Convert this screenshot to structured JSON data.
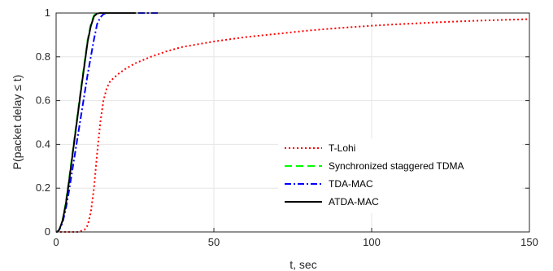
{
  "chart_data": {
    "type": "line",
    "title": "",
    "xlabel": "t, sec",
    "ylabel": "P(packet delay   ≤ t)",
    "xlim": [
      0,
      150
    ],
    "ylim": [
      0,
      1
    ],
    "xticks": [
      0,
      50,
      100,
      150
    ],
    "yticks": [
      0,
      0.2,
      0.4,
      0.6,
      0.8,
      1
    ],
    "xtick_labels": [
      "0",
      "50",
      "100",
      "150"
    ],
    "ytick_labels": [
      "0",
      "0.2",
      "0.4",
      "0.6",
      "0.8",
      "1"
    ],
    "grid": true,
    "legend_position": "lower-right",
    "series": [
      {
        "name": "T-Lohi",
        "color": "#ff0000",
        "dash": "dotted",
        "x": [
          0,
          7,
          9,
          10,
          11,
          12,
          13,
          14,
          15,
          16,
          17,
          18,
          20,
          22,
          25,
          30,
          35,
          40,
          50,
          60,
          70,
          80,
          90,
          100,
          110,
          120,
          130,
          140,
          150
        ],
        "y": [
          0,
          0,
          0.01,
          0.03,
          0.09,
          0.2,
          0.36,
          0.5,
          0.6,
          0.655,
          0.685,
          0.7,
          0.725,
          0.745,
          0.77,
          0.8,
          0.825,
          0.845,
          0.87,
          0.89,
          0.905,
          0.92,
          0.932,
          0.942,
          0.95,
          0.957,
          0.963,
          0.968,
          0.972
        ]
      },
      {
        "name": "Synchronized staggered TDMA",
        "color": "#00ff00",
        "dash": "dashed",
        "x": [
          0,
          0.5,
          1,
          2,
          3,
          4,
          6,
          8,
          10,
          11,
          12,
          13,
          14,
          25
        ],
        "y": [
          0,
          0.002,
          0.01,
          0.05,
          0.13,
          0.23,
          0.45,
          0.67,
          0.88,
          0.95,
          0.99,
          1,
          1,
          1
        ]
      },
      {
        "name": "TDA-MAC",
        "color": "#0000ff",
        "dash": "dashdot",
        "x": [
          0,
          0.5,
          1,
          2,
          3,
          4,
          6,
          8,
          10,
          12,
          13,
          14,
          15,
          16,
          20,
          25,
          30,
          33
        ],
        "y": [
          0,
          0.002,
          0.01,
          0.04,
          0.1,
          0.18,
          0.36,
          0.54,
          0.72,
          0.88,
          0.95,
          0.98,
          0.995,
          1,
          1,
          1,
          1,
          1
        ]
      },
      {
        "name": "ATDA-MAC",
        "color": "#000000",
        "dash": "solid",
        "x": [
          0,
          0.5,
          1,
          2,
          3,
          4,
          6,
          8,
          10,
          11,
          12,
          13,
          14,
          18,
          25
        ],
        "y": [
          0,
          0.002,
          0.01,
          0.05,
          0.12,
          0.22,
          0.44,
          0.66,
          0.87,
          0.94,
          0.985,
          0.998,
          1,
          1,
          1
        ]
      }
    ]
  }
}
